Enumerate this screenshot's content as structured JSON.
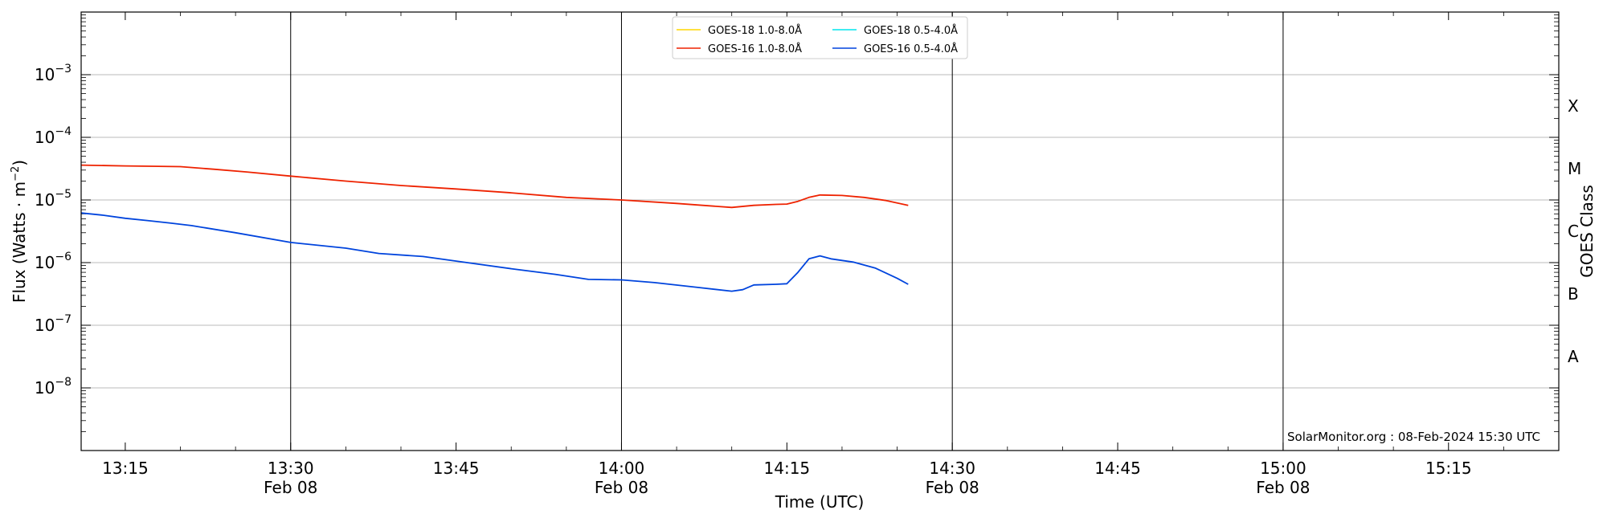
{
  "chart_data": {
    "type": "line",
    "xlabel": "Time (UTC)",
    "ylabel": "Flux (Watts · m",
    "ylabel_sup": "−2",
    "ylabel_close": ")",
    "ylabel_right": "GOES Class",
    "y_scale": "log",
    "ylim": [
      1e-09,
      0.01
    ],
    "xlim": [
      "13:11",
      "15:25"
    ],
    "grid": "horizontal major lines at decades; vertical lines at half hours",
    "y_ticks": [
      {
        "value": 1e-08,
        "base": "10",
        "exp": "−8"
      },
      {
        "value": 1e-07,
        "base": "10",
        "exp": "−7"
      },
      {
        "value": 1e-06,
        "base": "10",
        "exp": "−6"
      },
      {
        "value": 1e-05,
        "base": "10",
        "exp": "−5"
      },
      {
        "value": 0.0001,
        "base": "10",
        "exp": "−4"
      },
      {
        "value": 0.001,
        "base": "10",
        "exp": "−3"
      }
    ],
    "x_ticks": [
      {
        "time": "13:15",
        "label": "13:15",
        "sub": ""
      },
      {
        "time": "13:30",
        "label": "13:30",
        "sub": "Feb 08"
      },
      {
        "time": "13:45",
        "label": "13:45",
        "sub": ""
      },
      {
        "time": "14:00",
        "label": "14:00",
        "sub": "Feb 08"
      },
      {
        "time": "14:15",
        "label": "14:15",
        "sub": ""
      },
      {
        "time": "14:30",
        "label": "14:30",
        "sub": "Feb 08"
      },
      {
        "time": "14:45",
        "label": "14:45",
        "sub": ""
      },
      {
        "time": "15:00",
        "label": "15:00",
        "sub": "Feb 08"
      },
      {
        "time": "15:15",
        "label": "15:15",
        "sub": ""
      }
    ],
    "class_labels": [
      {
        "label": "A",
        "value": 3.16e-08
      },
      {
        "label": "B",
        "value": 3.16e-07
      },
      {
        "label": "C",
        "value": 3.16e-06
      },
      {
        "label": "M",
        "value": 3.16e-05
      },
      {
        "label": "X",
        "value": 0.000316
      }
    ],
    "legend": {
      "placement": "top-center",
      "entries": [
        {
          "name": "GOES-18 1.0-8.0Å",
          "color": "#ffd700"
        },
        {
          "name": "GOES-16 1.0-8.0Å",
          "color": "#ee2200"
        },
        {
          "name": "GOES-18 0.5-4.0Å",
          "color": "#00e5ee"
        },
        {
          "name": "GOES-16 0.5-4.0Å",
          "color": "#0044dd"
        }
      ]
    },
    "series": [
      {
        "name": "GOES-18 1.0-8.0Å",
        "color": "#ffd700",
        "points": []
      },
      {
        "name": "GOES-18 0.5-4.0Å",
        "color": "#00e5ee",
        "points": []
      },
      {
        "name": "GOES-16 1.0-8.0Å",
        "color": "#ee2200",
        "points": [
          [
            "13:11",
            3.6e-05
          ],
          [
            "13:15",
            3.5e-05
          ],
          [
            "13:18",
            3.45e-05
          ],
          [
            "13:20",
            3.4e-05
          ],
          [
            "13:23",
            3.1e-05
          ],
          [
            "13:26",
            2.8e-05
          ],
          [
            "13:30",
            2.4e-05
          ],
          [
            "13:35",
            2e-05
          ],
          [
            "13:40",
            1.7e-05
          ],
          [
            "13:45",
            1.5e-05
          ],
          [
            "13:50",
            1.3e-05
          ],
          [
            "13:55",
            1.1e-05
          ],
          [
            "14:00",
            1e-05
          ],
          [
            "14:05",
            8.8e-06
          ],
          [
            "14:10",
            7.6e-06
          ],
          [
            "14:12",
            8.2e-06
          ],
          [
            "14:14",
            8.5e-06
          ],
          [
            "14:15",
            8.6e-06
          ],
          [
            "14:16",
            9.5e-06
          ],
          [
            "14:17",
            1.1e-05
          ],
          [
            "14:18",
            1.2e-05
          ],
          [
            "14:20",
            1.18e-05
          ],
          [
            "14:22",
            1.1e-05
          ],
          [
            "14:24",
            9.8e-06
          ],
          [
            "14:26",
            8.2e-06
          ]
        ]
      },
      {
        "name": "GOES-16 0.5-4.0Å",
        "color": "#0044dd",
        "points": [
          [
            "13:11",
            6.2e-06
          ],
          [
            "13:13",
            5.7e-06
          ],
          [
            "13:15",
            5.1e-06
          ],
          [
            "13:17",
            4.7e-06
          ],
          [
            "13:19",
            4.3e-06
          ],
          [
            "13:21",
            3.9e-06
          ],
          [
            "13:25",
            3e-06
          ],
          [
            "13:30",
            2.1e-06
          ],
          [
            "13:35",
            1.7e-06
          ],
          [
            "13:38",
            1.4e-06
          ],
          [
            "13:42",
            1.25e-06
          ],
          [
            "13:46",
            1e-06
          ],
          [
            "13:50",
            8e-07
          ],
          [
            "13:54",
            6.5e-07
          ],
          [
            "13:57",
            5.4e-07
          ],
          [
            "14:00",
            5.3e-07
          ],
          [
            "14:03",
            4.8e-07
          ],
          [
            "14:07",
            4e-07
          ],
          [
            "14:10",
            3.5e-07
          ],
          [
            "14:11",
            3.7e-07
          ],
          [
            "14:12",
            4.4e-07
          ],
          [
            "14:14",
            4.5e-07
          ],
          [
            "14:15",
            4.6e-07
          ],
          [
            "14:16",
            7e-07
          ],
          [
            "14:17",
            1.15e-06
          ],
          [
            "14:18",
            1.28e-06
          ],
          [
            "14:19",
            1.15e-06
          ],
          [
            "14:21",
            1.02e-06
          ],
          [
            "14:23",
            8.2e-07
          ],
          [
            "14:25",
            5.6e-07
          ],
          [
            "14:26",
            4.5e-07
          ]
        ]
      }
    ]
  },
  "footer": {
    "text": "SolarMonitor.org : 08-Feb-2024 15:30 UTC"
  }
}
